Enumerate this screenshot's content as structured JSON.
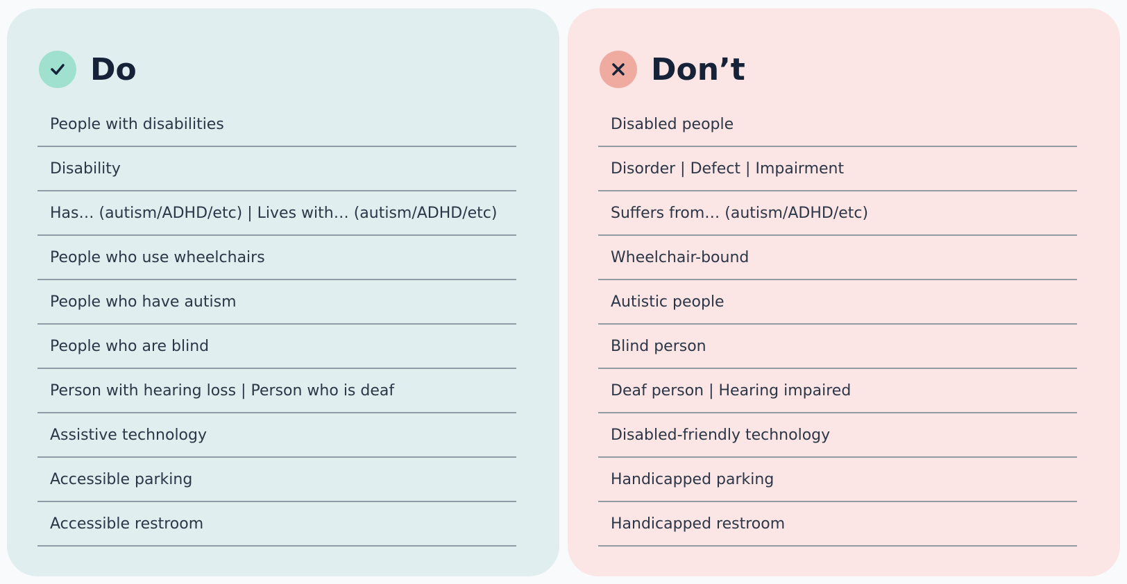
{
  "do": {
    "title": "Do",
    "items": [
      "People with disabilities",
      "Disability",
      "Has… (autism/ADHD/etc) | Lives with… (autism/ADHD/etc)",
      "People who use wheelchairs",
      "People who have autism",
      "People who are blind",
      "Person with hearing loss | Person who is deaf",
      "Assistive technology",
      "Accessible parking",
      "Accessible restroom"
    ]
  },
  "dont": {
    "title": "Don’t",
    "items": [
      "Disabled people",
      "Disorder | Defect | Impairment",
      "Suffers from… (autism/ADHD/etc)",
      "Wheelchair-bound",
      "Autistic people",
      "Blind person",
      "Deaf person | Hearing impaired",
      "Disabled-friendly technology",
      "Handicapped parking",
      "Handicapped restroom"
    ]
  }
}
